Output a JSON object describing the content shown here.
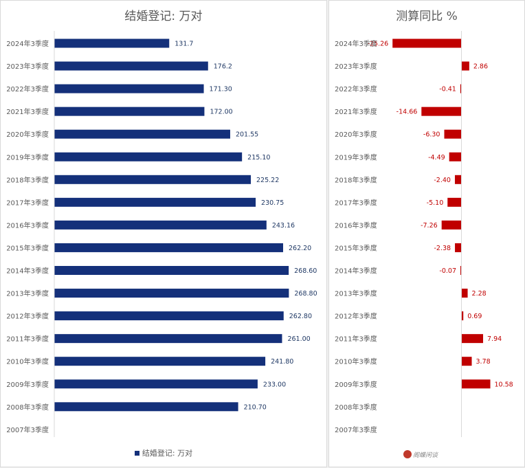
{
  "left_chart": {
    "title": "结婚登记: 万对",
    "legend_label": "结婚登记: 万对",
    "bar_color": "#14307a",
    "label_color": "#1f3864"
  },
  "right_chart": {
    "title": "测算同比 %",
    "bar_color": "#c00000",
    "label_color": "#c00000"
  },
  "watermark": {
    "text": "阁蝶闲谈"
  },
  "chart_data": [
    {
      "type": "bar",
      "orientation": "horizontal",
      "title": "结婚登记: 万对",
      "categories": [
        "2024年3季度",
        "2023年3季度",
        "2022年3季度",
        "2021年3季度",
        "2020年3季度",
        "2019年3季度",
        "2018年3季度",
        "2017年3季度",
        "2016年3季度",
        "2015年3季度",
        "2014年3季度",
        "2013年3季度",
        "2012年3季度",
        "2011年3季度",
        "2010年3季度",
        "2009年3季度",
        "2008年3季度",
        "2007年3季度"
      ],
      "values": [
        131.7,
        176.2,
        171.3,
        172.0,
        201.55,
        215.1,
        225.22,
        230.75,
        243.16,
        262.2,
        268.6,
        268.8,
        262.8,
        261.0,
        241.8,
        233.0,
        210.7,
        null
      ],
      "value_labels": [
        "131.7",
        "176.2",
        "171.30",
        "172.00",
        "201.55",
        "215.10",
        "225.22",
        "230.75",
        "243.16",
        "262.20",
        "268.60",
        "268.80",
        "262.80",
        "261.00",
        "241.80",
        "233.00",
        "210.70",
        ""
      ],
      "xlim": [
        0,
        300
      ],
      "legend": "bottom-center",
      "grid": false
    },
    {
      "type": "bar",
      "orientation": "horizontal",
      "title": "测算同比 %",
      "categories": [
        "2024年3季度",
        "2023年3季度",
        "2022年3季度",
        "2021年3季度",
        "2020年3季度",
        "2019年3季度",
        "2018年3季度",
        "2017年3季度",
        "2016年3季度",
        "2015年3季度",
        "2014年3季度",
        "2013年3季度",
        "2012年3季度",
        "2011年3季度",
        "2010年3季度",
        "2009年3季度",
        "2008年3季度",
        "2007年3季度"
      ],
      "values": [
        -25.26,
        2.86,
        -0.41,
        -14.66,
        -6.3,
        -4.49,
        -2.4,
        -5.1,
        -7.26,
        -2.38,
        -0.07,
        2.28,
        0.69,
        7.94,
        3.78,
        10.58,
        null,
        null
      ],
      "value_labels": [
        "-25.26",
        "2.86",
        "-0.41",
        "-14.66",
        "-6.30",
        "-4.49",
        "-2.40",
        "-5.10",
        "-7.26",
        "-2.38",
        "-0.07",
        "2.28",
        "0.69",
        "7.94",
        "3.78",
        "10.58",
        "",
        ""
      ],
      "xlim": [
        -26,
        13
      ],
      "legend": "none",
      "grid": false
    }
  ]
}
